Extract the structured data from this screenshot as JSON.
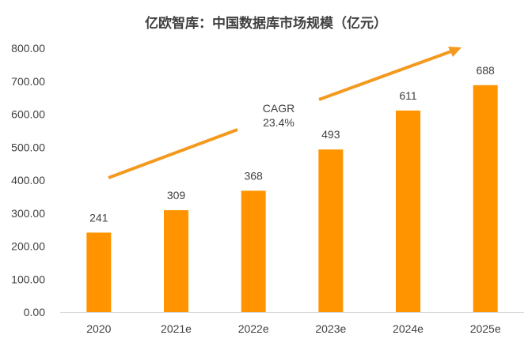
{
  "colors": {
    "bar": "#FF9400",
    "arrow": "#F39A1E",
    "axis": "#D9D9D9",
    "text": "#404040"
  },
  "annotation": {
    "line1": "CAGR",
    "line2": "23.4%"
  },
  "chart_data": {
    "type": "bar",
    "title": "亿欧智库：中国数据库市场规模（亿元）",
    "xlabel": "",
    "ylabel": "",
    "categories": [
      "2020",
      "2021e",
      "2022e",
      "2023e",
      "2024e",
      "2025e"
    ],
    "values": [
      241,
      309,
      368,
      493,
      611,
      688
    ],
    "data_labels": [
      "241",
      "309",
      "368",
      "493",
      "611",
      "688"
    ],
    "ylim": [
      0,
      800
    ],
    "y_ticks": [
      0,
      100,
      200,
      300,
      400,
      500,
      600,
      700,
      800
    ],
    "y_tick_labels": [
      "0.00",
      "100.00",
      "200.00",
      "300.00",
      "400.00",
      "500.00",
      "600.00",
      "700.00",
      "800.00"
    ],
    "grid": false,
    "legend": "none"
  }
}
